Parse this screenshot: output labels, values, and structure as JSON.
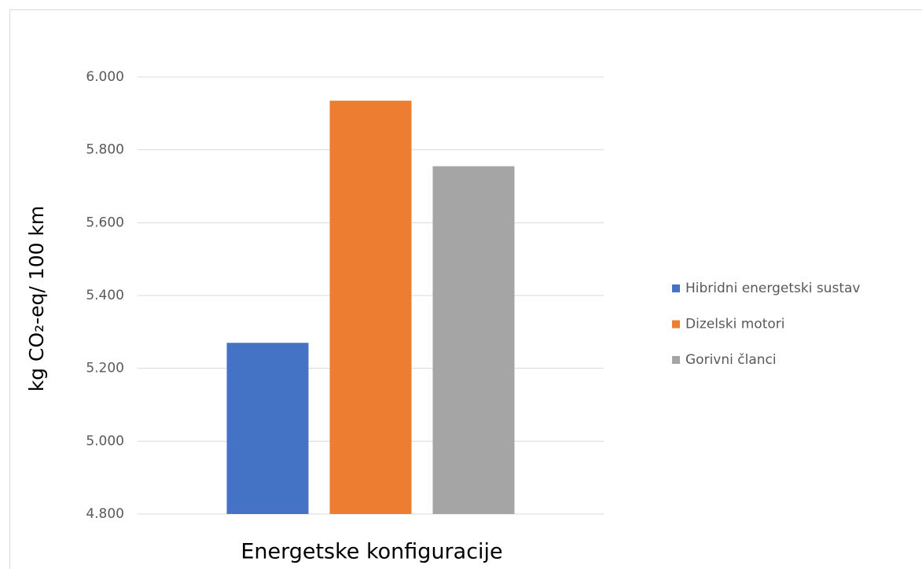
{
  "chart_data": {
    "type": "bar",
    "y_label": "kg CO₂-eq/ 100 km",
    "x_label": "Energetske konfiguracije",
    "categories": [
      null
    ],
    "series": [
      {
        "name": "Hibridni energetski sustav",
        "color": "#4472c4",
        "values": [
          5270
        ]
      },
      {
        "name": "Dizelski motori",
        "color": "#ed7d31",
        "values": [
          5935
        ]
      },
      {
        "name": "Gorivni članci",
        "color": "#a5a5a5",
        "values": [
          5755
        ]
      }
    ],
    "ylim": [
      4800,
      6000
    ],
    "yticks": [
      {
        "value": 4800,
        "label": "4.800"
      },
      {
        "value": 5000,
        "label": "5.000"
      },
      {
        "value": 5200,
        "label": "5.200"
      },
      {
        "value": 5400,
        "label": "5.400"
      },
      {
        "value": 5600,
        "label": "5.600"
      },
      {
        "value": 5800,
        "label": "5.800"
      },
      {
        "value": 6000,
        "label": "6.000"
      }
    ],
    "grid": true,
    "legend": "right"
  }
}
